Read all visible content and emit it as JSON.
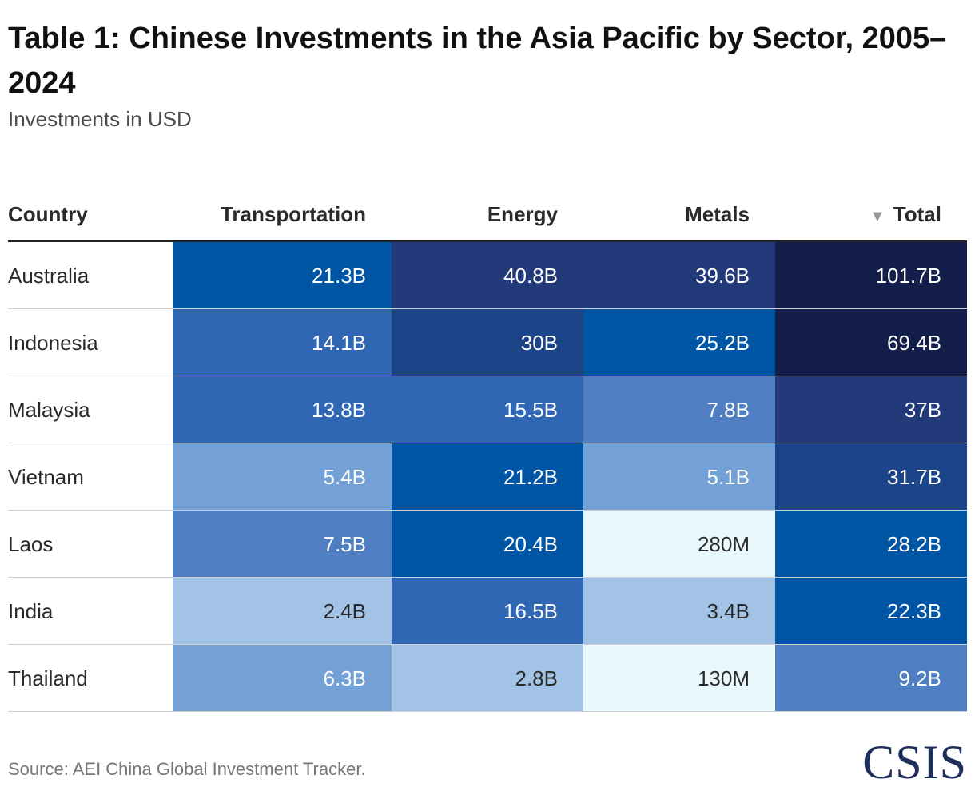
{
  "title": "Table 1: Chinese Investments in the Asia Pacific by Sector, 2005–2024",
  "subtitle": "Investments in USD",
  "source": "Source: AEI China Global Investment Tracker.",
  "logo_text": "CSIS",
  "sort_icon": "triangle-down-icon",
  "colors": {
    "scale": [
      "#e8f8fd",
      "#a3c3e6",
      "#73a1d5",
      "#4f7fc2",
      "#2f67b5",
      "#0055a5",
      "#1c4488",
      "#223a7a",
      "#141e4a"
    ],
    "text_dark": "#2a2a2a",
    "text_light": "#ffffff",
    "logo": "#1f2f5c"
  },
  "chart_data": {
    "type": "table",
    "columns": [
      "Country",
      "Transportation",
      "Energy",
      "Metals",
      "Total"
    ],
    "sorted_by": "Total",
    "sort_order": "descending",
    "rows": [
      {
        "country": "Australia",
        "values": [
          "21.3B",
          "40.8B",
          "39.6B",
          "101.7B"
        ],
        "shades": [
          5,
          7,
          7,
          8
        ]
      },
      {
        "country": "Indonesia",
        "values": [
          "14.1B",
          "30B",
          "25.2B",
          "69.4B"
        ],
        "shades": [
          4,
          6,
          5,
          8
        ]
      },
      {
        "country": "Malaysia",
        "values": [
          "13.8B",
          "15.5B",
          "7.8B",
          "37B"
        ],
        "shades": [
          4,
          4,
          3,
          7
        ]
      },
      {
        "country": "Vietnam",
        "values": [
          "5.4B",
          "21.2B",
          "5.1B",
          "31.7B"
        ],
        "shades": [
          2,
          5,
          2,
          6
        ]
      },
      {
        "country": "Laos",
        "values": [
          "7.5B",
          "20.4B",
          "280M",
          "28.2B"
        ],
        "shades": [
          3,
          5,
          0,
          5
        ]
      },
      {
        "country": "India",
        "values": [
          "2.4B",
          "16.5B",
          "3.4B",
          "22.3B"
        ],
        "shades": [
          1,
          4,
          1,
          5
        ]
      },
      {
        "country": "Thailand",
        "values": [
          "6.3B",
          "2.8B",
          "130M",
          "9.2B"
        ],
        "shades": [
          2,
          1,
          0,
          3
        ]
      }
    ]
  }
}
